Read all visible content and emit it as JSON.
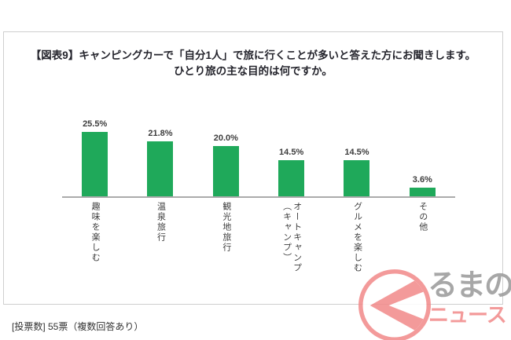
{
  "header": {
    "title_line1": "【図表9】キャンピングカーで「自分1人」で旅に行くことが多いと答えた方にお聞きします。",
    "title_line2": "ひとり旅の主な目的は何ですか。"
  },
  "chart_data": {
    "type": "bar",
    "title": "【図表9】キャンピングカーで「自分1人」で旅に行くことが多いと答えた方にお聞きします。ひとり旅の主な目的は何ですか。",
    "categories": [
      "趣味を楽しむ",
      "温泉旅行",
      "観光地旅行",
      "オートキャンプ（キャンプ）",
      "グルメを楽しむ",
      "その他"
    ],
    "category_columns": [
      [
        "趣味を楽しむ"
      ],
      [
        "温泉旅行"
      ],
      [
        "観光地旅行"
      ],
      [
        "オートキャンプ",
        "（キャンプ）"
      ],
      [
        "グルメを楽しむ"
      ],
      [
        "その他"
      ]
    ],
    "values": [
      25.5,
      21.8,
      20.0,
      14.5,
      14.5,
      3.6
    ],
    "value_labels": [
      "25.5%",
      "21.8%",
      "20.0%",
      "14.5%",
      "14.5%",
      "3.6%"
    ],
    "xlabel": "",
    "ylabel": "",
    "ylim": [
      0,
      30
    ],
    "grid": false,
    "legend": false,
    "bar_color": "#1FA95A",
    "axis_color": "#ABABAB"
  },
  "footer": {
    "note": "[投票数] 55票（複数回答あり）"
  },
  "logo": {
    "mark": "ku-circle-mark",
    "text_main": "るまの",
    "text_sub": "ニュース",
    "color_accent": "#F28D8D",
    "color_main_text": "#9C9C9C"
  }
}
